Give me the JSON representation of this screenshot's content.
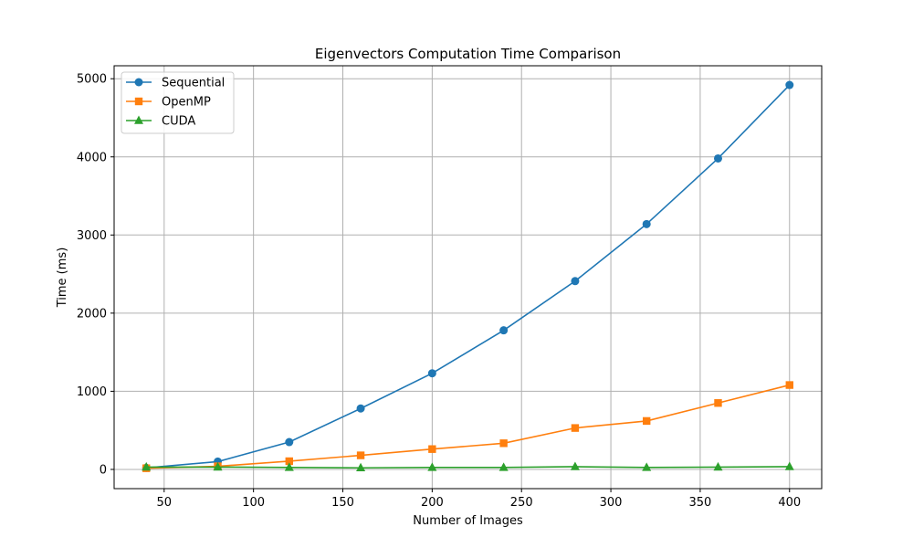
{
  "chart_data": {
    "type": "line",
    "title": "Eigenvectors Computation Time Comparison",
    "xlabel": "Number of Images",
    "ylabel": "Time (ms)",
    "x": [
      40,
      80,
      120,
      160,
      200,
      240,
      280,
      320,
      360,
      400
    ],
    "xlim": [
      22,
      418
    ],
    "ylim": [
      -246,
      5166
    ],
    "xticks": [
      50,
      100,
      150,
      200,
      250,
      300,
      350,
      400
    ],
    "yticks": [
      0,
      1000,
      2000,
      3000,
      4000,
      5000
    ],
    "grid": true,
    "legend_position": "top-left",
    "series": [
      {
        "name": "Sequential",
        "marker": "circle",
        "color": "#1f77b4",
        "values": [
          20,
          100,
          350,
          780,
          1230,
          1780,
          2410,
          3140,
          3980,
          4920
        ]
      },
      {
        "name": "OpenMP",
        "marker": "square",
        "color": "#ff7f0e",
        "values": [
          15,
          40,
          105,
          180,
          260,
          335,
          530,
          620,
          850,
          1080
        ]
      },
      {
        "name": "CUDA",
        "marker": "triangle",
        "color": "#2ca02c",
        "values": [
          30,
          30,
          25,
          20,
          25,
          25,
          35,
          25,
          30,
          35
        ]
      }
    ]
  }
}
